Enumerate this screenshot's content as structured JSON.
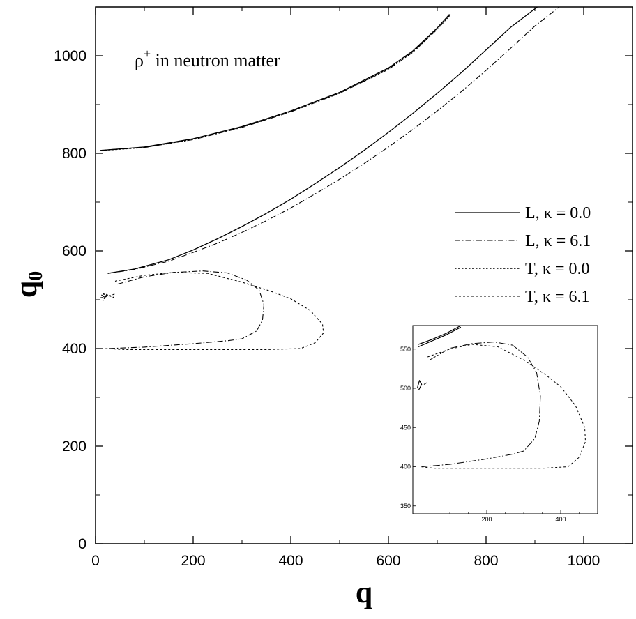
{
  "chart_data": [
    {
      "type": "line",
      "annotation": {
        "symbol": "ρ",
        "superscript": "+",
        "text": " in neutron matter"
      },
      "xlabel": "q",
      "ylabel": {
        "main": "q",
        "subscript": "0"
      },
      "xlim": [
        0,
        1100
      ],
      "ylim": [
        0,
        1100
      ],
      "xticks": [
        0,
        200,
        400,
        600,
        800,
        1000
      ],
      "yticks": [
        0,
        200,
        400,
        600,
        800,
        1000
      ],
      "xtick_labels": [
        "0",
        "200",
        "400",
        "600",
        "800",
        "1000"
      ],
      "ytick_labels": [
        "0",
        "200",
        "400",
        "600",
        "800",
        "1000"
      ],
      "grid": false,
      "legend_position": "right",
      "series": [
        {
          "name": "L,  κ = 0.0",
          "style": "solid",
          "segments": [
            [
              [
                25,
                554
              ],
              [
                80,
                563
              ],
              [
                150,
                582
              ],
              [
                200,
                602
              ],
              [
                250,
                625
              ],
              [
                300,
                650
              ],
              [
                350,
                677
              ],
              [
                400,
                706
              ],
              [
                450,
                738
              ],
              [
                500,
                771
              ],
              [
                550,
                806
              ],
              [
                600,
                843
              ],
              [
                650,
                882
              ],
              [
                700,
                923
              ],
              [
                750,
                966
              ],
              [
                800,
                1012
              ],
              [
                850,
                1058
              ],
              [
                905,
                1100
              ]
            ],
            [
              [
                10,
                806
              ],
              [
                100,
                813
              ],
              [
                200,
                830
              ],
              [
                300,
                855
              ],
              [
                400,
                887
              ],
              [
                500,
                925
              ],
              [
                600,
                975
              ],
              [
                650,
                1010
              ],
              [
                700,
                1057
              ],
              [
                725,
                1085
              ]
            ]
          ]
        },
        {
          "name": "L,  κ = 6.1",
          "style": "dashdot",
          "segments": [
            [
              [
                25,
                554
              ],
              [
                80,
                562
              ],
              [
                150,
                579
              ],
              [
                200,
                597
              ],
              [
                250,
                616
              ],
              [
                300,
                638
              ],
              [
                350,
                662
              ],
              [
                400,
                688
              ],
              [
                450,
                717
              ],
              [
                500,
                747
              ],
              [
                550,
                779
              ],
              [
                600,
                813
              ],
              [
                650,
                849
              ],
              [
                700,
                887
              ],
              [
                750,
                927
              ],
              [
                800,
                970
              ],
              [
                850,
                1015
              ],
              [
                900,
                1061
              ],
              [
                950,
                1100
              ]
            ],
            [
              [
                12,
                806
              ],
              [
                100,
                812
              ],
              [
                200,
                828
              ],
              [
                300,
                853
              ],
              [
                400,
                885
              ],
              [
                500,
                923
              ],
              [
                600,
                972
              ],
              [
                650,
                1007
              ],
              [
                700,
                1054
              ],
              [
                728,
                1085
              ]
            ],
            [
              [
                45,
                532
              ],
              [
                100,
                547
              ],
              [
                160,
                556
              ],
              [
                220,
                559
              ],
              [
                270,
                555
              ],
              [
                310,
                540
              ],
              [
                335,
                520
              ],
              [
                345,
                490
              ],
              [
                342,
                458
              ],
              [
                330,
                436
              ],
              [
                300,
                420
              ],
              [
                270,
                416
              ],
              [
                200,
                410
              ],
              [
                100,
                403
              ],
              [
                25,
                400
              ]
            ],
            [
              [
                12,
                510
              ],
              [
                20,
                504
              ],
              [
                15,
                498
              ],
              [
                24,
                513
              ]
            ]
          ]
        },
        {
          "name": "T,  κ = 0.0",
          "style": "dotted",
          "segments": [
            [
              [
                12,
                806
              ],
              [
                100,
                812
              ],
              [
                200,
                829
              ],
              [
                300,
                854
              ],
              [
                400,
                886
              ],
              [
                500,
                924
              ],
              [
                600,
                973
              ],
              [
                650,
                1008
              ],
              [
                700,
                1056
              ],
              [
                726,
                1085
              ]
            ],
            [
              [
                15,
                512
              ],
              [
                30,
                508
              ],
              [
                38,
                504
              ]
            ]
          ]
        },
        {
          "name": "T,   κ = 6.1",
          "style": "shortdash",
          "segments": [
            [
              [
                40,
                538
              ],
              [
                100,
                550
              ],
              [
                160,
                556
              ],
              [
                230,
                554
              ],
              [
                300,
                536
              ],
              [
                360,
                517
              ],
              [
                400,
                502
              ],
              [
                440,
                478
              ],
              [
                465,
                450
              ],
              [
                467,
                432
              ],
              [
                450,
                412
              ],
              [
                420,
                400
              ],
              [
                350,
                398
              ],
              [
                200,
                398
              ],
              [
                60,
                398
              ],
              [
                20,
                400
              ]
            ],
            [
              [
                10,
                504
              ],
              [
                25,
                507
              ],
              [
                40,
                512
              ]
            ]
          ]
        }
      ]
    },
    {
      "type": "line",
      "note": "inset zoom of the lower-left region",
      "xlim": [
        0,
        500
      ],
      "ylim": [
        340,
        580
      ],
      "xticks": [
        200,
        400
      ],
      "yticks": [
        350,
        400,
        450,
        500,
        550
      ],
      "xtick_labels": [
        "200",
        "400"
      ],
      "ytick_labels": [
        "350",
        "400",
        "450",
        "500",
        "550"
      ],
      "series": [
        {
          "style": "solid",
          "segments": [
            [
              [
                15,
                556
              ],
              [
                50,
                562
              ],
              [
                90,
                570
              ],
              [
                130,
                580
              ]
            ],
            [
              [
                15,
                553
              ],
              [
                50,
                560
              ],
              [
                90,
                568
              ],
              [
                130,
                578
              ]
            ],
            [
              [
                12,
                500
              ],
              [
                18,
                510
              ],
              [
                24,
                505
              ],
              [
                16,
                498
              ]
            ]
          ]
        },
        {
          "style": "dashdot",
          "segments": [
            [
              [
                45,
                536
              ],
              [
                100,
                551
              ],
              [
                160,
                557
              ],
              [
                220,
                559
              ],
              [
                270,
                555
              ],
              [
                310,
                540
              ],
              [
                335,
                520
              ],
              [
                345,
                490
              ],
              [
                342,
                458
              ],
              [
                330,
                436
              ],
              [
                300,
                420
              ],
              [
                270,
                416
              ],
              [
                200,
                410
              ],
              [
                100,
                403
              ],
              [
                25,
                400
              ]
            ],
            [
              [
                30,
                505
              ],
              [
                38,
                507
              ]
            ]
          ]
        },
        {
          "style": "shortdash",
          "segments": [
            [
              [
                40,
                540
              ],
              [
                100,
                550
              ],
              [
                160,
                556
              ],
              [
                230,
                553
              ],
              [
                300,
                536
              ],
              [
                360,
                517
              ],
              [
                400,
                502
              ],
              [
                440,
                478
              ],
              [
                465,
                450
              ],
              [
                467,
                432
              ],
              [
                450,
                412
              ],
              [
                420,
                400
              ],
              [
                350,
                398
              ],
              [
                200,
                398
              ],
              [
                60,
                398
              ],
              [
                20,
                400
              ]
            ]
          ]
        }
      ]
    }
  ]
}
